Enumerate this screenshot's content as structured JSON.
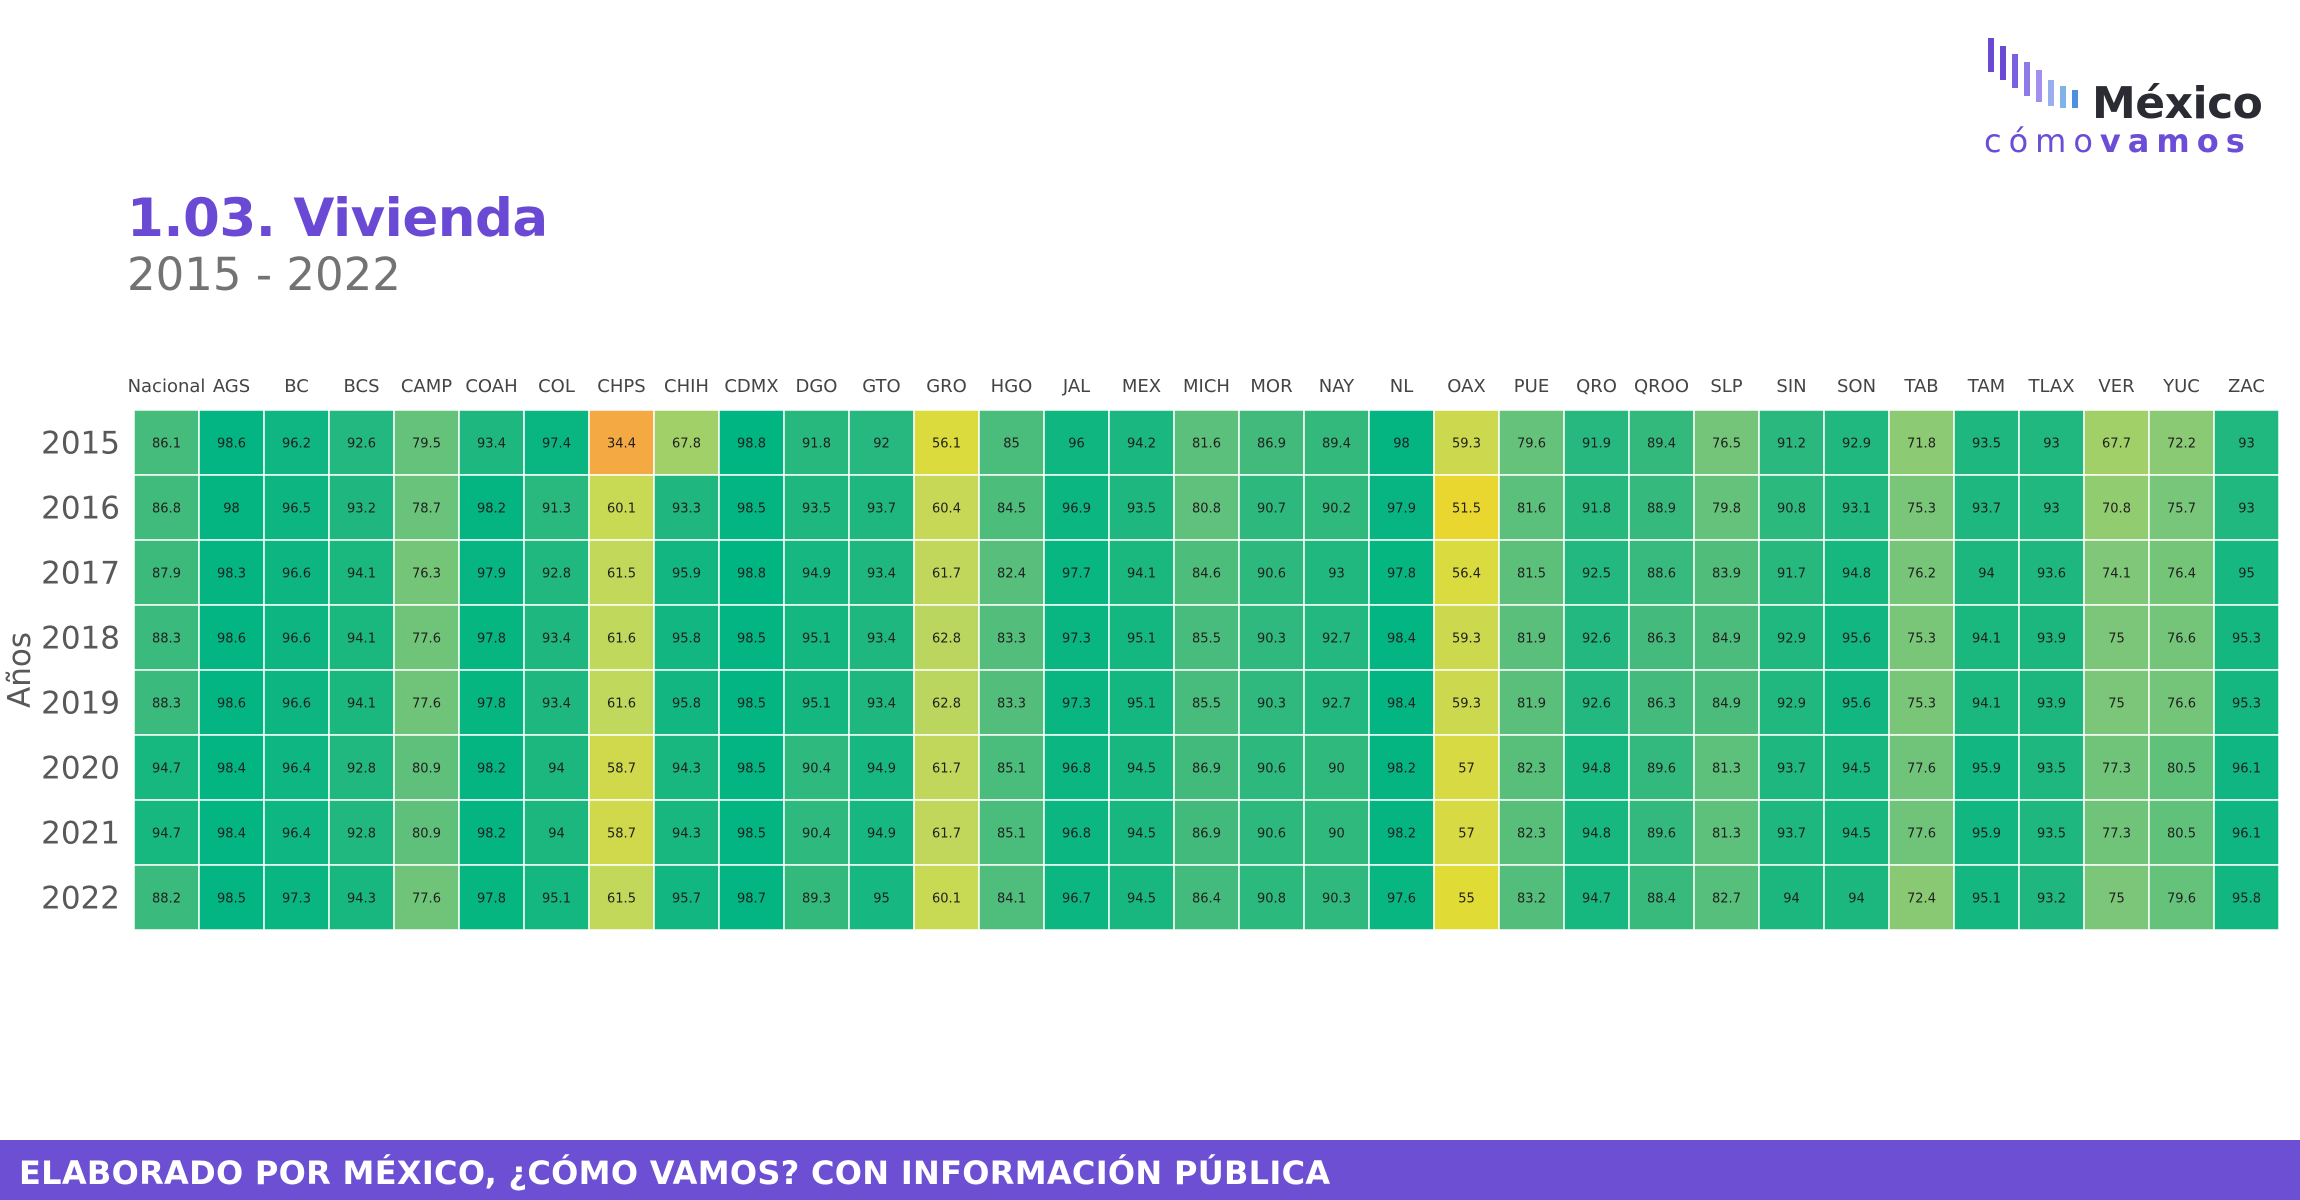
{
  "logo": {
    "word1": "México",
    "word2a": "cómo",
    "word2b": "vamos",
    "bar_colors": [
      "#6a4ad4",
      "#7a5fe0",
      "#8f7ae8",
      "#a38ff0",
      "#7fb3e8",
      "#4f8fe0"
    ]
  },
  "header": {
    "title": "1.03. Vivienda",
    "subtitle": "2015 - 2022"
  },
  "footer": {
    "text": "ELABORADO POR MÉXICO, ¿CÓMO VAMOS? CON INFORMACIÓN PÚBLICA"
  },
  "chart_data": {
    "type": "heatmap",
    "ylabel": "Años",
    "xlabel": "",
    "columns": [
      "Nacional",
      "AGS",
      "BC",
      "BCS",
      "CAMP",
      "COAH",
      "COL",
      "CHPS",
      "CHIH",
      "CDMX",
      "DGO",
      "GTO",
      "GRO",
      "HGO",
      "JAL",
      "MEX",
      "MICH",
      "MOR",
      "NAY",
      "NL",
      "OAX",
      "PUE",
      "QRO",
      "QROO",
      "SLP",
      "SIN",
      "SON",
      "TAB",
      "TAM",
      "TLAX",
      "VER",
      "YUC",
      "ZAC"
    ],
    "rows": [
      "2015",
      "2016",
      "2017",
      "2018",
      "2019",
      "2020",
      "2021",
      "2022"
    ],
    "values": [
      [
        86.1,
        98.6,
        96.2,
        92.6,
        79.5,
        93.4,
        97.4,
        34.4,
        67.8,
        98.8,
        91.8,
        92,
        56.1,
        85,
        96,
        94.2,
        81.6,
        86.9,
        89.4,
        98,
        59.3,
        79.6,
        91.9,
        89.4,
        76.5,
        91.2,
        92.9,
        71.8,
        93.5,
        93,
        67.7,
        72.2,
        93
      ],
      [
        86.8,
        98,
        96.5,
        93.2,
        78.7,
        98.2,
        91.3,
        60.1,
        93.3,
        98.5,
        93.5,
        93.7,
        60.4,
        84.5,
        96.9,
        93.5,
        80.8,
        90.7,
        90.2,
        97.9,
        51.5,
        81.6,
        91.8,
        88.9,
        79.8,
        90.8,
        93.1,
        75.3,
        93.7,
        93,
        70.8,
        75.7,
        93
      ],
      [
        87.9,
        98.3,
        96.6,
        94.1,
        76.3,
        97.9,
        92.8,
        61.5,
        95.9,
        98.8,
        94.9,
        93.4,
        61.7,
        82.4,
        97.7,
        94.1,
        84.6,
        90.6,
        93,
        97.8,
        56.4,
        81.5,
        92.5,
        88.6,
        83.9,
        91.7,
        94.8,
        76.2,
        94,
        93.6,
        74.1,
        76.4,
        95
      ],
      [
        88.3,
        98.6,
        96.6,
        94.1,
        77.6,
        97.8,
        93.4,
        61.6,
        95.8,
        98.5,
        95.1,
        93.4,
        62.8,
        83.3,
        97.3,
        95.1,
        85.5,
        90.3,
        92.7,
        98.4,
        59.3,
        81.9,
        92.6,
        86.3,
        84.9,
        92.9,
        95.6,
        75.3,
        94.1,
        93.9,
        75,
        76.6,
        95.3
      ],
      [
        88.3,
        98.6,
        96.6,
        94.1,
        77.6,
        97.8,
        93.4,
        61.6,
        95.8,
        98.5,
        95.1,
        93.4,
        62.8,
        83.3,
        97.3,
        95.1,
        85.5,
        90.3,
        92.7,
        98.4,
        59.3,
        81.9,
        92.6,
        86.3,
        84.9,
        92.9,
        95.6,
        75.3,
        94.1,
        93.9,
        75,
        76.6,
        95.3
      ],
      [
        94.7,
        98.4,
        96.4,
        92.8,
        80.9,
        98.2,
        94,
        58.7,
        94.3,
        98.5,
        90.4,
        94.9,
        61.7,
        85.1,
        96.8,
        94.5,
        86.9,
        90.6,
        90,
        98.2,
        57,
        82.3,
        94.8,
        89.6,
        81.3,
        93.7,
        94.5,
        77.6,
        95.9,
        93.5,
        77.3,
        80.5,
        96.1
      ],
      [
        94.7,
        98.4,
        96.4,
        92.8,
        80.9,
        98.2,
        94,
        58.7,
        94.3,
        98.5,
        90.4,
        94.9,
        61.7,
        85.1,
        96.8,
        94.5,
        86.9,
        90.6,
        90,
        98.2,
        57,
        82.3,
        94.8,
        89.6,
        81.3,
        93.7,
        94.5,
        77.6,
        95.9,
        93.5,
        77.3,
        80.5,
        96.1
      ],
      [
        88.2,
        98.5,
        97.3,
        94.3,
        77.6,
        97.8,
        95.1,
        61.5,
        95.7,
        98.7,
        89.3,
        95,
        60.1,
        84.1,
        96.7,
        94.5,
        86.4,
        90.8,
        90.3,
        97.6,
        55,
        83.2,
        94.7,
        88.4,
        82.7,
        94,
        94,
        72.4,
        95.1,
        93.2,
        75,
        79.6,
        95.8
      ]
    ],
    "color_scale": [
      "#f4a843",
      "#e8dc2e",
      "#c2d85a",
      "#7fc779",
      "#3fba7c",
      "#00b582"
    ],
    "grid": true,
    "legend": "none"
  }
}
